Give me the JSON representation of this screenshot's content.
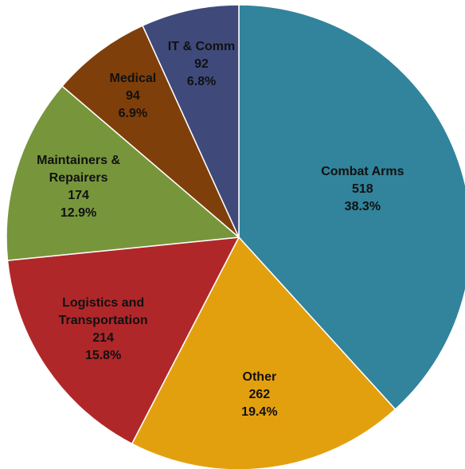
{
  "chart_data": {
    "type": "pie",
    "categories": [
      "Combat Arms",
      "Other",
      "Logistics and Transportation",
      "Maintainers & Repairers",
      "Medical",
      "IT & Comm"
    ],
    "values": [
      518,
      262,
      214,
      174,
      94,
      92
    ],
    "percent_labels": [
      "38.3%",
      "19.4%",
      "15.8%",
      "12.9%",
      "6.9%",
      "6.8%"
    ],
    "colors": [
      "#31849b",
      "#e3a00e",
      "#b0272a",
      "#77963b",
      "#7f3f0a",
      "#3f4a7b"
    ]
  }
}
